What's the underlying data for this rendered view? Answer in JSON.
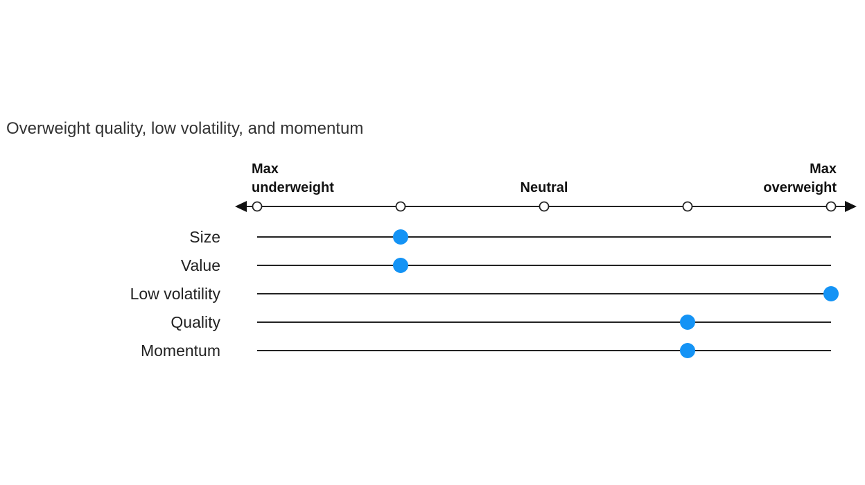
{
  "chart_data": {
    "type": "scatter",
    "title": "Overweight quality, low volatility, and momentum",
    "scale": {
      "positions": [
        0,
        1,
        2,
        3,
        4
      ],
      "labels": [
        {
          "position": 0,
          "lines": [
            "Max",
            "underweight"
          ]
        },
        {
          "position": 2,
          "lines": [
            "Neutral"
          ]
        },
        {
          "position": 4,
          "lines": [
            "Max",
            "overweight"
          ]
        }
      ]
    },
    "categories": [
      "Size",
      "Value",
      "Low volatility",
      "Quality",
      "Momentum"
    ],
    "values": [
      1,
      1,
      4,
      3,
      3
    ],
    "colors": {
      "marker": "#1493f5",
      "line": "#222222",
      "tick_fill": "#ffffff"
    }
  }
}
